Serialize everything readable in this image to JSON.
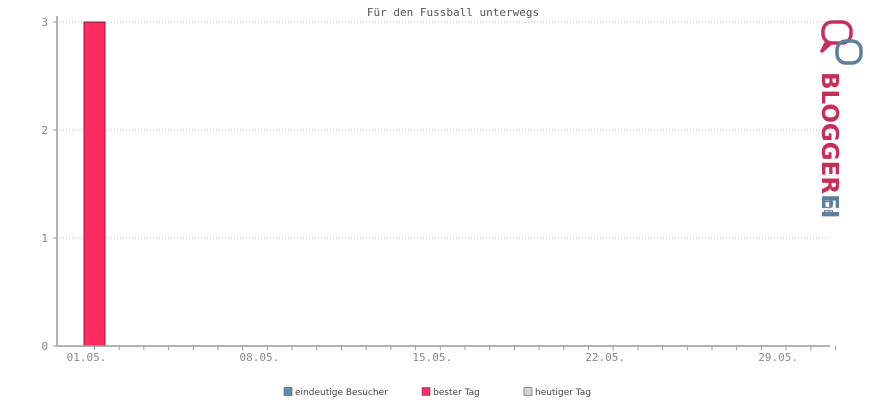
{
  "chart_data": {
    "type": "bar",
    "title": "Für den Fussball unterwegs",
    "x_tick_labels": [
      "01.05.",
      "08.05.",
      "15.05.",
      "22.05.",
      "29.05."
    ],
    "days": [
      "01.05.",
      "02.05.",
      "03.05.",
      "04.05.",
      "05.05.",
      "06.05.",
      "07.05.",
      "08.05.",
      "09.05.",
      "10.05.",
      "11.05.",
      "12.05.",
      "13.05.",
      "14.05.",
      "15.05.",
      "16.05.",
      "17.05.",
      "18.05.",
      "19.05.",
      "20.05.",
      "21.05.",
      "22.05.",
      "23.05.",
      "24.05.",
      "25.05.",
      "26.05.",
      "27.05.",
      "28.05.",
      "29.05.",
      "30.05.",
      "31.05."
    ],
    "series": [
      {
        "name": "eindeutige Besucher",
        "color": "#5a8fb8",
        "values": [
          3,
          0,
          0,
          0,
          0,
          0,
          0,
          0,
          0,
          0,
          0,
          0,
          0,
          0,
          0,
          0,
          0,
          0,
          0,
          0,
          0,
          0,
          0,
          0,
          0,
          0,
          0,
          0,
          0,
          0,
          0
        ]
      },
      {
        "name": "bester Tag",
        "color": "#ff2a5f",
        "day": "01.05.",
        "value": 3
      },
      {
        "name": "heutiger Tag",
        "color": "#d4d4d4",
        "day": null,
        "value": null
      }
    ],
    "y_ticks": [
      0,
      1,
      2,
      3
    ],
    "ylim": [
      0,
      3
    ],
    "grid": true,
    "legend_position": "bottom-center",
    "xlabel": "",
    "ylabel": ""
  },
  "branding": {
    "logo_text": "BLOGGEREI.DE",
    "logo_colors": [
      "#c62f5b",
      "#5d7e9c"
    ]
  }
}
